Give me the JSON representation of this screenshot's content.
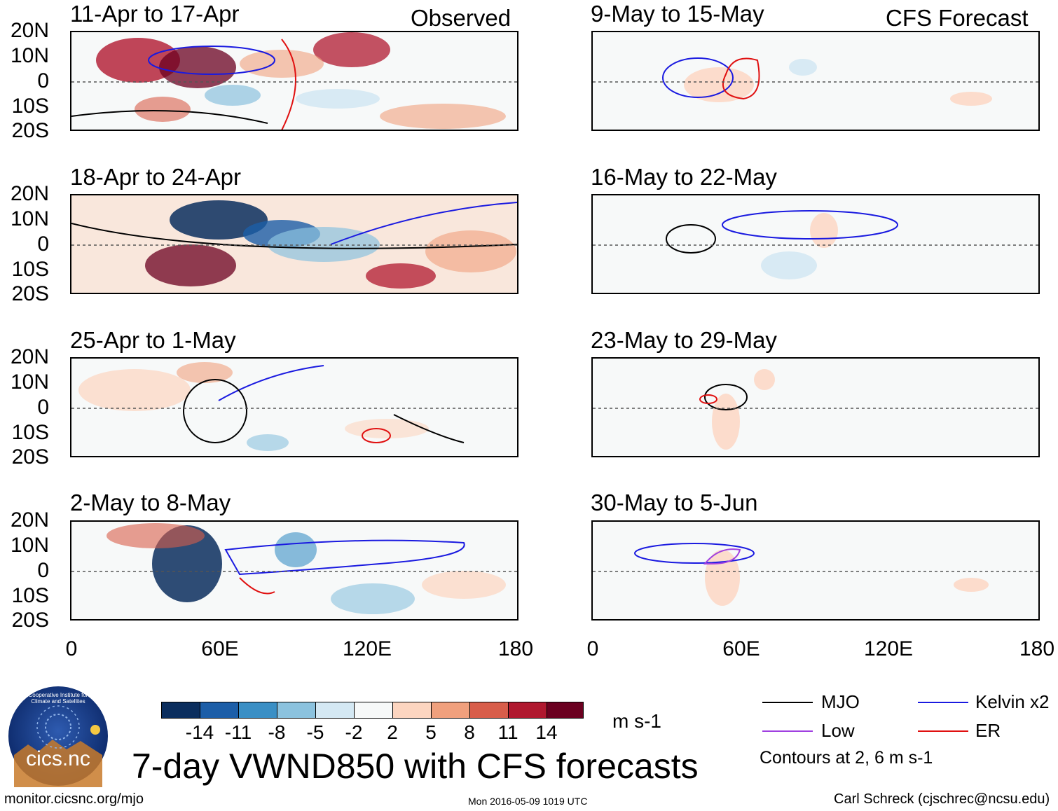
{
  "observed_label": "Observed",
  "forecast_label": "CFS Forecast",
  "lat_labels": [
    "20N",
    "10N",
    "0",
    "10S",
    "20S"
  ],
  "lon_labels": [
    "0",
    "60E",
    "120E",
    "180"
  ],
  "observed_panels": [
    {
      "title": "11-Apr to 17-Apr"
    },
    {
      "title": "18-Apr to 24-Apr"
    },
    {
      "title": "25-Apr to 1-May"
    },
    {
      "title": "2-May to 8-May"
    }
  ],
  "forecast_panels": [
    {
      "title": "9-May to 15-May"
    },
    {
      "title": "16-May to 22-May"
    },
    {
      "title": "23-May to 29-May"
    },
    {
      "title": "30-May to 5-Jun"
    }
  ],
  "colorbar": {
    "colors": [
      "#0b2e5e",
      "#1c5ea8",
      "#3a8fc5",
      "#8bc2de",
      "#d4e8f3",
      "#f7f9f9",
      "#fcd5c0",
      "#f0a07d",
      "#d85d4a",
      "#b0182f",
      "#6b0020"
    ],
    "labels": [
      "-14",
      "-11",
      "-8",
      "-5",
      "-2",
      "2",
      "5",
      "8",
      "11",
      "14"
    ],
    "units": "m s-1"
  },
  "title": "7-day VWND850 with CFS forecasts",
  "legend": {
    "items": [
      {
        "label": "MJO",
        "color": "#000000"
      },
      {
        "label": "Kelvin x2",
        "color": "#1a1ae0"
      },
      {
        "label": "Low",
        "color": "#a040e0"
      },
      {
        "label": "ER",
        "color": "#e01010"
      }
    ],
    "note": "Contours at 2, 6 m s-1"
  },
  "logo_text": "cics.nc",
  "logo_ring_text": "Cooperative Institute for Climate and Satellites",
  "footer": {
    "url": "monitor.cicsnc.org/mjo",
    "timestamp": "Mon 2016-05-09 1019 UTC",
    "author": "Carl Schreck (cjschrec@ncsu.edu)"
  }
}
